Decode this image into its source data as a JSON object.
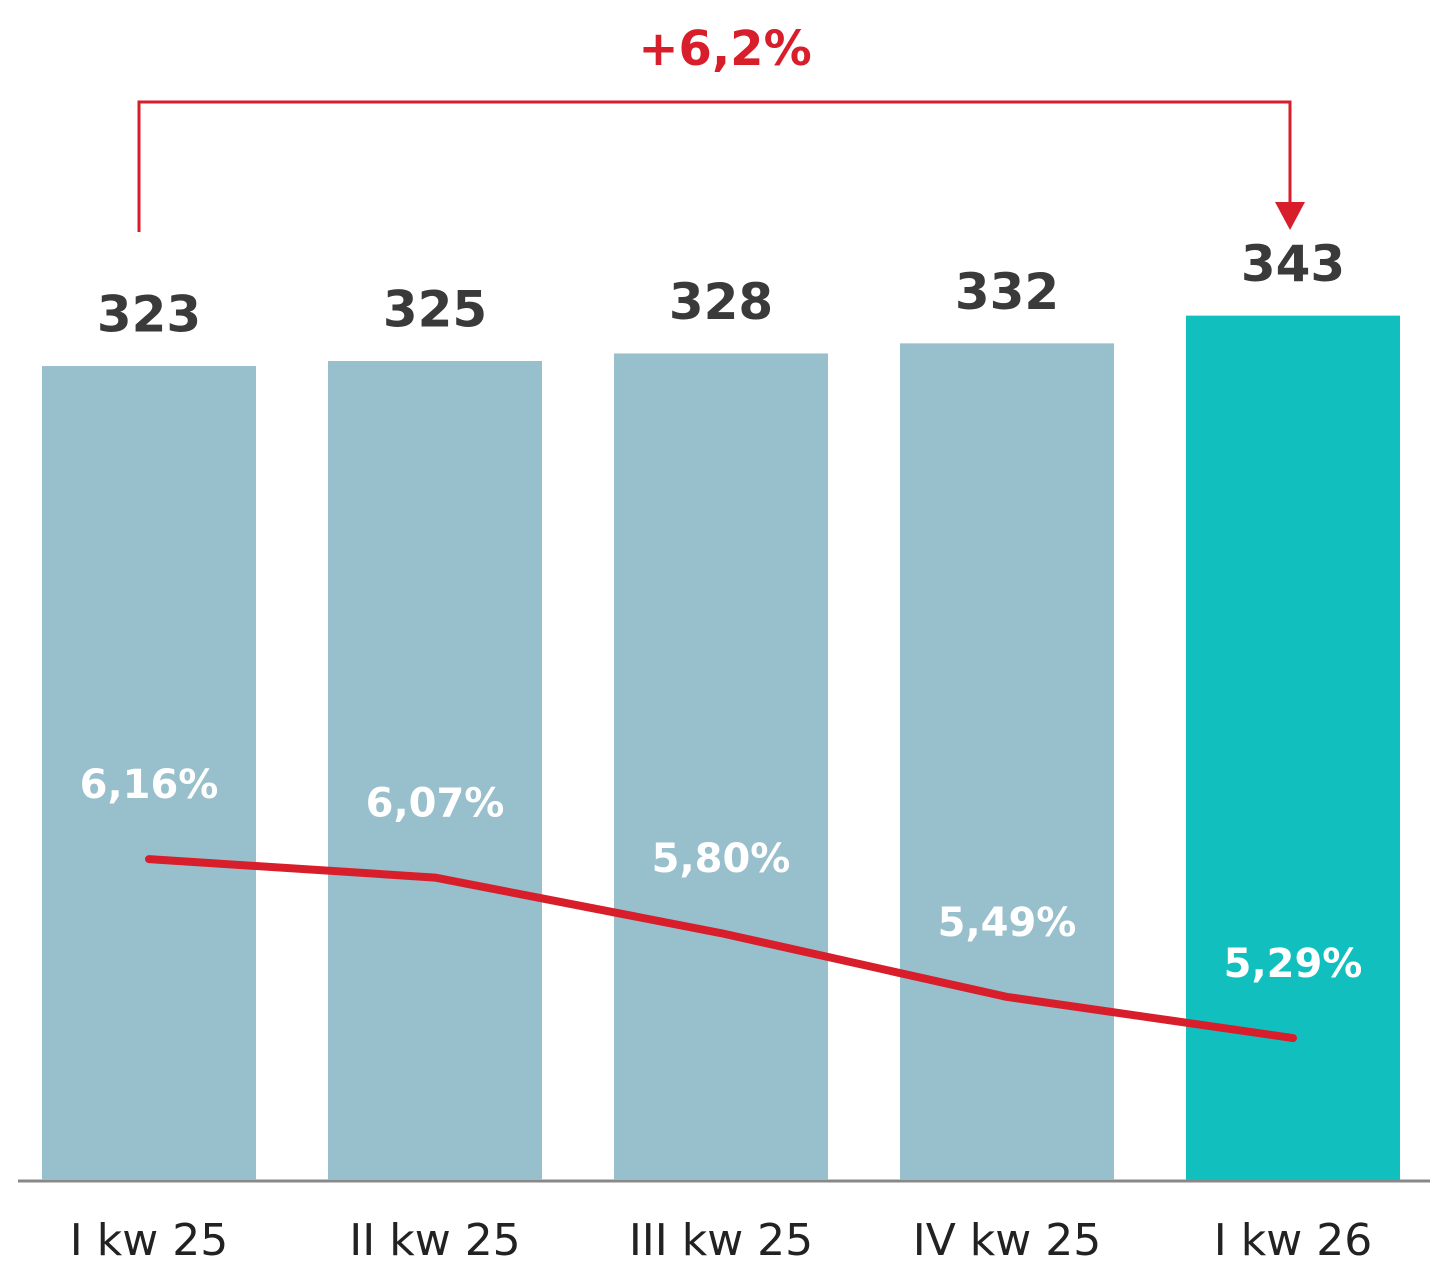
{
  "chart_data": {
    "type": "bar",
    "annotation": "+6,2%",
    "categories": [
      "I kw 25",
      "II kw 25",
      "III kw 25",
      "IV kw 25",
      "I kw 26"
    ],
    "series": [
      {
        "type": "bar",
        "colors": [
          "#98bfcc",
          "#98bfcc",
          "#98bfcc",
          "#98bfcc",
          "#12bfbf"
        ],
        "values": [
          323,
          325,
          328,
          332,
          343
        ]
      },
      {
        "type": "line",
        "axis": "y2",
        "color": "#d81e2a",
        "values": [
          6.16,
          6.07,
          5.8,
          5.49,
          5.29
        ],
        "value_labels": [
          "6,16%",
          "6,07%",
          "5,80%",
          "5,49%",
          "5,29%"
        ]
      }
    ],
    "ylim": [
      0,
      400
    ],
    "y2lim": [
      4.6,
      9.5
    ]
  }
}
